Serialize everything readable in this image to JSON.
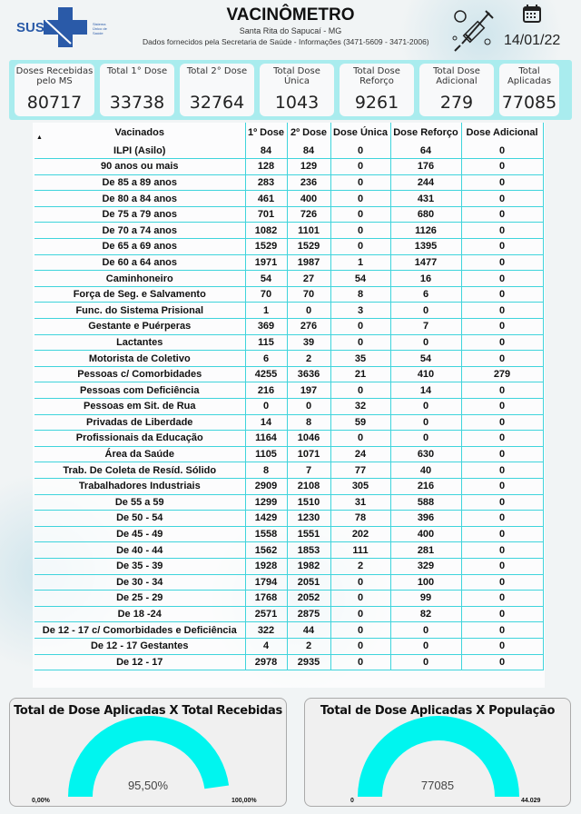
{
  "header": {
    "logo_text": "SUS",
    "logo_subtext": "Sistema Único de Saúde",
    "title": "VACINÔMETRO",
    "city": "Santa Rita do Sapucaí - MG",
    "source": "Dados fornecidos pela Secretaria de Saúde - Informações (3471-5609 - 3471-2006)",
    "date": "14/01/22",
    "icons": [
      "vaccine-syringe-icon",
      "calendar-icon"
    ]
  },
  "cards": [
    {
      "label": "Doses Recebidas pelo MS",
      "value": "80717"
    },
    {
      "label": "Total 1° Dose",
      "value": "33738"
    },
    {
      "label": "Total 2° Dose",
      "value": "32764"
    },
    {
      "label": "Total Dose Única",
      "value": "1043"
    },
    {
      "label": "Total Dose Reforço",
      "value": "9261"
    },
    {
      "label": "Total Dose Adicional",
      "value": "279"
    },
    {
      "label": "Total Aplicadas",
      "value": "77085"
    }
  ],
  "table": {
    "columns": [
      "Vacinados",
      "1º Dose",
      "2º Dose",
      "Dose Única",
      "Dose Reforço",
      "Dose Adicional"
    ],
    "rows": [
      [
        "ILPI (Asilo)",
        "84",
        "84",
        "0",
        "64",
        "0"
      ],
      [
        "90 anos ou mais",
        "128",
        "129",
        "0",
        "176",
        "0"
      ],
      [
        "De 85 a 89 anos",
        "283",
        "236",
        "0",
        "244",
        "0"
      ],
      [
        "De 80 a 84 anos",
        "461",
        "400",
        "0",
        "431",
        "0"
      ],
      [
        "De 75 a 79 anos",
        "701",
        "726",
        "0",
        "680",
        "0"
      ],
      [
        "De 70 a 74 anos",
        "1082",
        "1101",
        "0",
        "1126",
        "0"
      ],
      [
        "De 65 a 69 anos",
        "1529",
        "1529",
        "0",
        "1395",
        "0"
      ],
      [
        "De 60 a 64 anos",
        "1971",
        "1987",
        "1",
        "1477",
        "0"
      ],
      [
        "Caminhoneiro",
        "54",
        "27",
        "54",
        "16",
        "0"
      ],
      [
        "Força de Seg. e Salvamento",
        "70",
        "70",
        "8",
        "6",
        "0"
      ],
      [
        "Func. do Sistema Prisional",
        "1",
        "0",
        "3",
        "0",
        "0"
      ],
      [
        "Gestante e Puérperas",
        "369",
        "276",
        "0",
        "7",
        "0"
      ],
      [
        "Lactantes",
        "115",
        "39",
        "0",
        "0",
        "0"
      ],
      [
        "Motorista de Coletivo",
        "6",
        "2",
        "35",
        "54",
        "0"
      ],
      [
        "Pessoas c/ Comorbidades",
        "4255",
        "3636",
        "21",
        "410",
        "279"
      ],
      [
        "Pessoas com Deficiência",
        "216",
        "197",
        "0",
        "14",
        "0"
      ],
      [
        "Pessoas em Sit. de Rua",
        "0",
        "0",
        "32",
        "0",
        "0"
      ],
      [
        "Privadas de Liberdade",
        "14",
        "8",
        "59",
        "0",
        "0"
      ],
      [
        "Profissionais da Educação",
        "1164",
        "1046",
        "0",
        "0",
        "0"
      ],
      [
        "Área da Saúde",
        "1105",
        "1071",
        "24",
        "630",
        "0"
      ],
      [
        "Trab. De Coleta de Resíd. Sólido",
        "8",
        "7",
        "77",
        "40",
        "0"
      ],
      [
        "Trabalhadores Industriais",
        "2909",
        "2108",
        "305",
        "216",
        "0"
      ],
      [
        "De 55 a 59",
        "1299",
        "1510",
        "31",
        "588",
        "0"
      ],
      [
        "De 50 - 54",
        "1429",
        "1230",
        "78",
        "396",
        "0"
      ],
      [
        "De 45 - 49",
        "1558",
        "1551",
        "202",
        "400",
        "0"
      ],
      [
        "De 40 - 44",
        "1562",
        "1853",
        "111",
        "281",
        "0"
      ],
      [
        "De 35 - 39",
        "1928",
        "1982",
        "2",
        "329",
        "0"
      ],
      [
        "De 30 - 34",
        "1794",
        "2051",
        "0",
        "100",
        "0"
      ],
      [
        "De 25 - 29",
        "1768",
        "2052",
        "0",
        "99",
        "0"
      ],
      [
        "De 18 -24",
        "2571",
        "2875",
        "0",
        "82",
        "0"
      ],
      [
        "De 12 - 17 c/ Comorbidades e Deficiência",
        "322",
        "44",
        "0",
        "0",
        "0"
      ],
      [
        "De 12 - 17 Gestantes",
        "4",
        "2",
        "0",
        "0",
        "0"
      ],
      [
        "De 12 - 17",
        "2978",
        "2935",
        "0",
        "0",
        "0"
      ]
    ]
  },
  "gauges": [
    {
      "title": "Total de Dose Aplicadas X Total Recebidas",
      "value_label": "95,50%",
      "value": 95.5,
      "min": 0,
      "max": 100,
      "min_label": "0,00%",
      "max_label": "100,00%",
      "color": "#00f5ef"
    },
    {
      "title": "Total de Dose Aplicadas X População",
      "value_label": "77085",
      "value": 77085,
      "min": 0,
      "max": 44029,
      "min_label": "0",
      "max_label": "44.029",
      "color": "#00f5ef"
    }
  ]
}
